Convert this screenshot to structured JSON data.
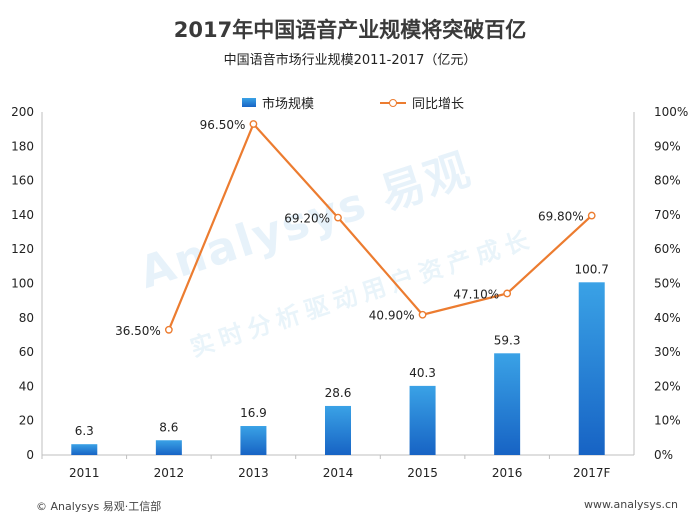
{
  "watermark": {
    "brand": "Analysys 易观",
    "slogan": "实时分析驱动用户资产成长"
  },
  "footer": {
    "left": "© Analysys 易观·工信部",
    "right": "www.analysys.cn"
  },
  "colors": {
    "bar_top": "#3aa2e6",
    "bar_bottom": "#1763c4",
    "line": "#ec7c30",
    "axis": "#bfbfbf"
  },
  "chart_data": {
    "type": "bar",
    "title": "2017年中国语音产业规模将突破百亿",
    "subtitle": "中国语音市场行业规模2011-2017（亿元）",
    "categories": [
      "2011",
      "2012",
      "2013",
      "2014",
      "2015",
      "2016",
      "2017F"
    ],
    "series": [
      {
        "name": "市场规模",
        "type": "bar",
        "axis": "left",
        "values": [
          6.3,
          8.6,
          16.9,
          28.6,
          40.3,
          59.3,
          100.7
        ],
        "labels": [
          "6.3",
          "8.6",
          "16.9",
          "28.6",
          "40.3",
          "59.3",
          "100.7"
        ]
      },
      {
        "name": "同比增长",
        "type": "line",
        "axis": "right",
        "values": [
          null,
          36.5,
          96.5,
          69.2,
          40.9,
          47.1,
          69.8
        ],
        "labels": [
          "",
          "36.50%",
          "96.50%",
          "69.20%",
          "40.90%",
          "47.10%",
          "69.80%"
        ]
      }
    ],
    "ylim": [
      0,
      200
    ],
    "yticks": [
      "0",
      "20",
      "40",
      "60",
      "80",
      "100",
      "120",
      "140",
      "160",
      "180",
      "200"
    ],
    "y2lim": [
      0,
      100
    ],
    "y2ticks": [
      "0%",
      "10%",
      "20%",
      "30%",
      "40%",
      "50%",
      "60%",
      "70%",
      "80%",
      "90%",
      "100%"
    ],
    "legend": "top-center",
    "grid": false
  }
}
